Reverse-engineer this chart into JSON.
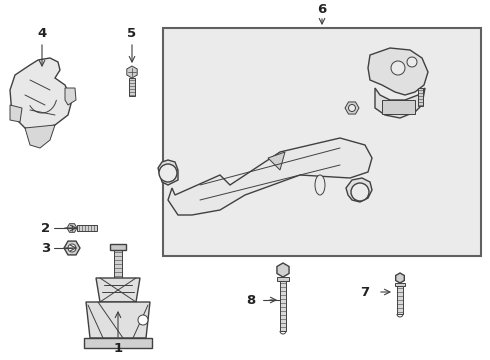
{
  "bg_color": "#ffffff",
  "line_color": "#404040",
  "box_bg": "#ebebeb",
  "box_border": "#606060",
  "label_color": "#222222",
  "figsize": [
    4.9,
    3.6
  ],
  "dpi": 100
}
